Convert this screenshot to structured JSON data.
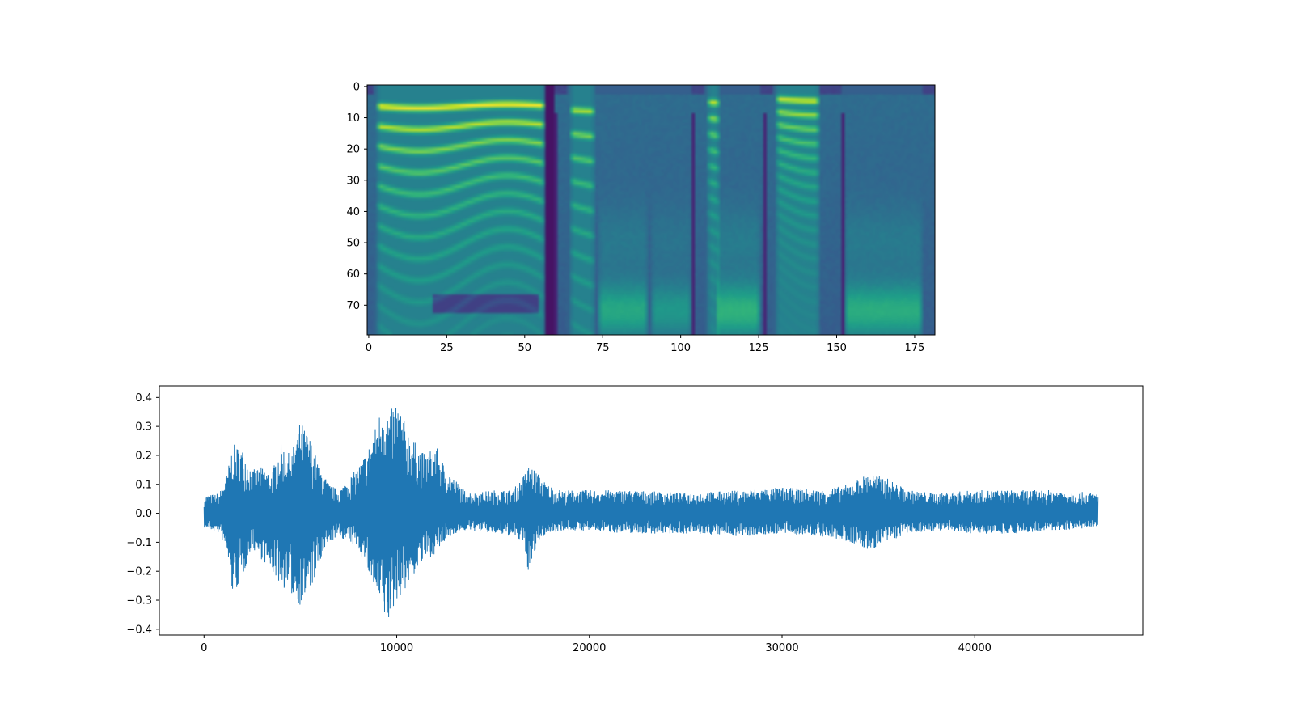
{
  "chart_data": [
    {
      "type": "heatmap",
      "title": "",
      "xlabel": "",
      "ylabel": "",
      "colormap": "viridis",
      "xlim": [
        -0.5,
        181.5
      ],
      "ylim": [
        79.5,
        -0.5
      ],
      "n_frames": 182,
      "n_mels": 80,
      "xticks": [
        0,
        25,
        50,
        75,
        100,
        125,
        150,
        175
      ],
      "yticks": [
        0,
        10,
        20,
        30,
        40,
        50,
        60,
        70
      ],
      "segments": [
        {
          "kind": "voiced",
          "start": 2,
          "end": 57,
          "f0_bin": 6.3,
          "energy": 0.95
        },
        {
          "kind": "gap",
          "start": 57,
          "end": 60
        },
        {
          "kind": "voiced",
          "start": 64,
          "end": 73,
          "f0_bin": 7.5,
          "energy": 0.75
        },
        {
          "kind": "fricative",
          "start": 73,
          "end": 90,
          "energy": 0.65
        },
        {
          "kind": "fricative",
          "start": 90,
          "end": 104,
          "energy": 0.5
        },
        {
          "kind": "voiced",
          "start": 108,
          "end": 113,
          "f0_bin": 5,
          "energy": 0.8
        },
        {
          "kind": "fricative",
          "start": 111,
          "end": 126,
          "energy": 0.75
        },
        {
          "kind": "voiced",
          "start": 130,
          "end": 145,
          "f0_bin": 4,
          "energy": 0.85
        },
        {
          "kind": "fricative",
          "start": 152,
          "end": 178,
          "energy": 0.7
        }
      ]
    },
    {
      "type": "line",
      "title": "",
      "xlabel": "",
      "ylabel": "",
      "color": "#1f77b4",
      "n_samples": 46400,
      "xlim": [
        -2320,
        48720
      ],
      "ylim": [
        -0.42,
        0.44
      ],
      "xticks": [
        0,
        10000,
        20000,
        30000,
        40000
      ],
      "yticks": [
        0.4,
        0.3,
        0.2,
        0.1,
        0.0,
        -0.1,
        -0.2,
        -0.3,
        -0.4
      ],
      "ytick_labels": [
        "0.4",
        "0.3",
        "0.2",
        "0.1",
        "0.0",
        "−0.1",
        "−0.2",
        "−0.3",
        "−0.4"
      ],
      "envelope": {
        "x": [
          0,
          800,
          1200,
          1500,
          2000,
          2500,
          3000,
          3500,
          4000,
          4500,
          5000,
          5500,
          6000,
          6500,
          7000,
          7500,
          8000,
          8500,
          9000,
          9300,
          9600,
          10000,
          10500,
          11000,
          11500,
          12000,
          12500,
          13000,
          13500,
          14000,
          15000,
          16000,
          16500,
          16900,
          17300,
          17800,
          18500,
          20000,
          22000,
          25000,
          28000,
          30000,
          32000,
          33500,
          34500,
          35500,
          36500,
          38000,
          40000,
          42000,
          44000,
          46400
        ],
        "max": [
          0.06,
          0.07,
          0.14,
          0.24,
          0.22,
          0.15,
          0.16,
          0.14,
          0.24,
          0.2,
          0.32,
          0.26,
          0.16,
          0.1,
          0.08,
          0.12,
          0.16,
          0.22,
          0.32,
          0.4,
          0.34,
          0.4,
          0.3,
          0.24,
          0.2,
          0.24,
          0.16,
          0.12,
          0.08,
          0.07,
          0.08,
          0.08,
          0.12,
          0.17,
          0.14,
          0.1,
          0.08,
          0.08,
          0.08,
          0.07,
          0.08,
          0.09,
          0.08,
          0.1,
          0.14,
          0.12,
          0.08,
          0.07,
          0.08,
          0.08,
          0.08,
          0.07
        ],
        "min": [
          -0.05,
          -0.07,
          -0.14,
          -0.29,
          -0.22,
          -0.12,
          -0.16,
          -0.2,
          -0.25,
          -0.28,
          -0.32,
          -0.27,
          -0.18,
          -0.1,
          -0.08,
          -0.1,
          -0.12,
          -0.2,
          -0.3,
          -0.36,
          -0.38,
          -0.3,
          -0.26,
          -0.2,
          -0.16,
          -0.14,
          -0.1,
          -0.07,
          -0.06,
          -0.06,
          -0.07,
          -0.08,
          -0.1,
          -0.22,
          -0.1,
          -0.07,
          -0.06,
          -0.06,
          -0.07,
          -0.07,
          -0.08,
          -0.07,
          -0.08,
          -0.1,
          -0.13,
          -0.1,
          -0.07,
          -0.06,
          -0.07,
          -0.07,
          -0.06,
          -0.05
        ]
      }
    }
  ]
}
